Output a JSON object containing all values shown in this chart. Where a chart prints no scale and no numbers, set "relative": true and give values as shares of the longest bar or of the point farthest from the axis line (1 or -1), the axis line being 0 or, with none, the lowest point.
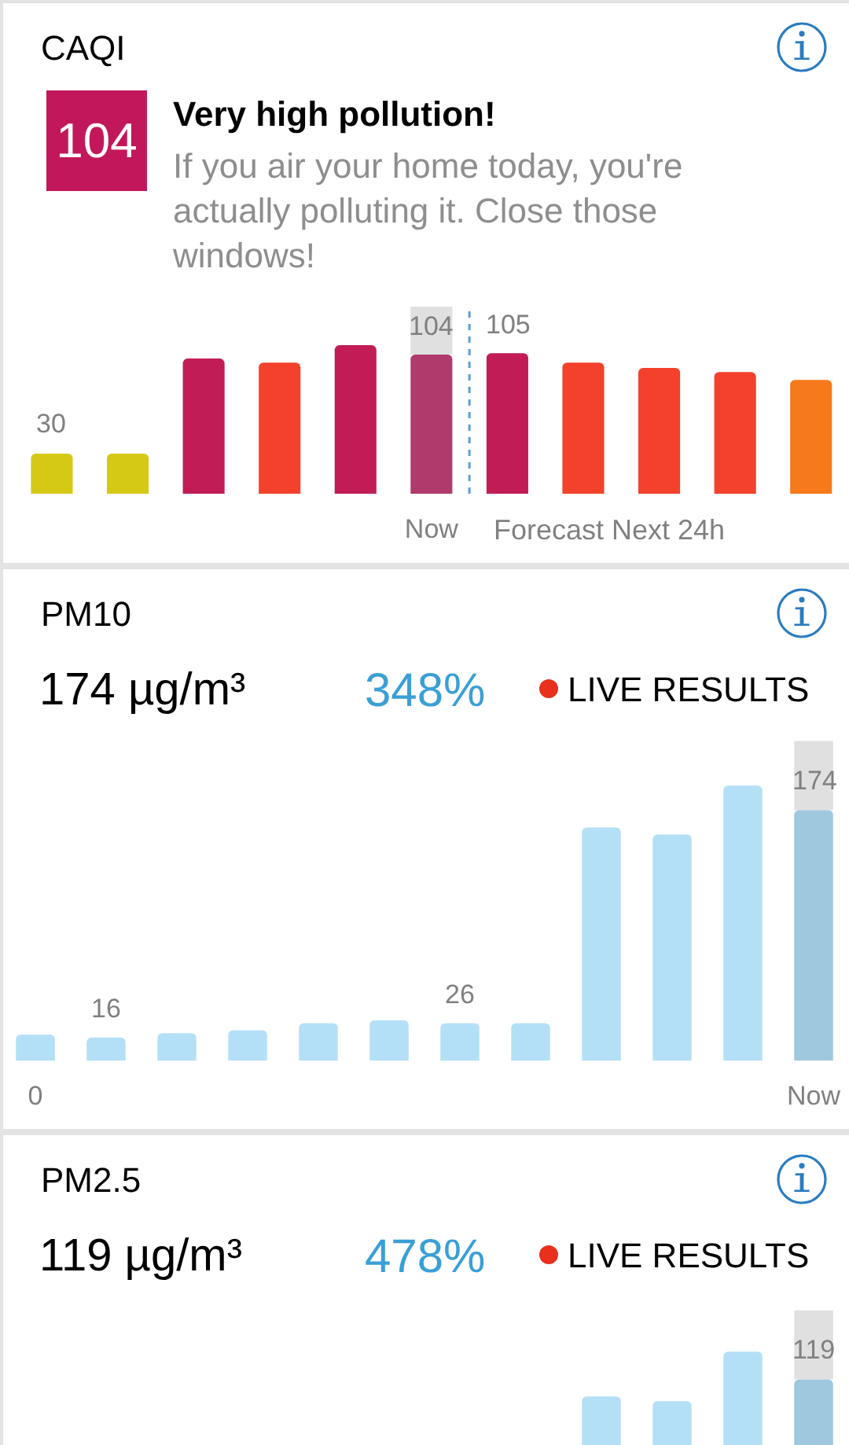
{
  "chart_data": [
    {
      "type": "bar",
      "title": "CAQI",
      "subtitle": "Very high pollution!",
      "annotations": [
        "104",
        "If you air your home today, you're actually polluting it. Close those windows!",
        "Forecast Next 24h"
      ],
      "categories": [
        null,
        null,
        null,
        null,
        null,
        "Now",
        null,
        null,
        null,
        null,
        null
      ],
      "values": [
        30,
        30,
        101,
        98,
        111,
        104,
        105,
        98,
        94,
        91,
        85
      ],
      "colors": [
        "#d6c915",
        "#d6c915",
        "#c21c57",
        "#f3412c",
        "#c21c57",
        "#b13a6c",
        "#c21c57",
        "#f3412c",
        "#f3412c",
        "#f3412c",
        "#f67a1b"
      ],
      "value_labels": [
        "30",
        null,
        null,
        null,
        null,
        "104",
        "105",
        null,
        null,
        null,
        null
      ],
      "tick_labels": "x"
    },
    {
      "type": "bar",
      "title": "PM10",
      "subtitle": "174 µg/m³",
      "annotations": [
        "348%",
        "LIVE RESULTS"
      ],
      "categories": [
        "0",
        null,
        null,
        null,
        null,
        null,
        null,
        null,
        null,
        null,
        null,
        "Now"
      ],
      "values": [
        18,
        16,
        19,
        21,
        26,
        28,
        26,
        26,
        162,
        157,
        191,
        174
      ],
      "colors": [
        "#b4e0f7",
        "#b4e0f7",
        "#b4e0f7",
        "#b4e0f7",
        "#b4e0f7",
        "#b4e0f7",
        "#b4e0f7",
        "#b4e0f7",
        "#b4e0f7",
        "#b4e0f7",
        "#b4e0f7",
        "#9fc8de"
      ],
      "value_labels": [
        null,
        "16",
        null,
        null,
        null,
        null,
        "26",
        null,
        null,
        null,
        null,
        "174"
      ],
      "tick_labels": "x"
    },
    {
      "type": "bar",
      "title": "PM2.5",
      "subtitle": "119 µg/m³",
      "annotations": [
        "478%",
        "LIVE RESULTS",
        {
          "text": "119",
          "y": 0.7
        }
      ],
      "categories": [
        null,
        null,
        null,
        null,
        null,
        null,
        null,
        null,
        null,
        null,
        null,
        null
      ],
      "values": [
        null,
        null,
        null,
        null,
        null,
        null,
        null,
        null,
        0.52,
        0.47,
        1,
        0.7
      ],
      "colors": [
        "#b4e0f7",
        "#b4e0f7",
        "#b4e0f7",
        "#b4e0f7",
        "#b4e0f7",
        "#b4e0f7",
        "#b4e0f7",
        "#b4e0f7",
        "#b4e0f7",
        "#b4e0f7",
        "#b4e0f7",
        "#9fc8de"
      ],
      "relative": true,
      "tick_labels": false
    }
  ]
}
